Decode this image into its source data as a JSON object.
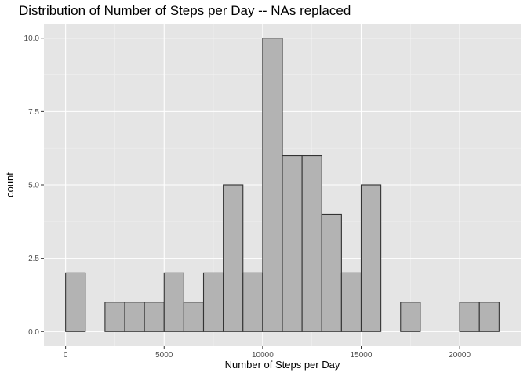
{
  "chart_data": {
    "type": "bar",
    "title": "Distribution of Number of Steps per Day -- NAs replaced",
    "xlabel": "Number of Steps per Day",
    "ylabel": "count",
    "bin_width": 1000,
    "bins": [
      {
        "x0": 0,
        "x1": 1000,
        "count": 2
      },
      {
        "x0": 1000,
        "x1": 2000,
        "count": 0
      },
      {
        "x0": 2000,
        "x1": 3000,
        "count": 1
      },
      {
        "x0": 3000,
        "x1": 4000,
        "count": 1
      },
      {
        "x0": 4000,
        "x1": 5000,
        "count": 1
      },
      {
        "x0": 5000,
        "x1": 6000,
        "count": 2
      },
      {
        "x0": 6000,
        "x1": 7000,
        "count": 1
      },
      {
        "x0": 7000,
        "x1": 8000,
        "count": 2
      },
      {
        "x0": 8000,
        "x1": 9000,
        "count": 5
      },
      {
        "x0": 9000,
        "x1": 10000,
        "count": 2
      },
      {
        "x0": 10000,
        "x1": 11000,
        "count": 10
      },
      {
        "x0": 11000,
        "x1": 12000,
        "count": 6
      },
      {
        "x0": 12000,
        "x1": 13000,
        "count": 6
      },
      {
        "x0": 13000,
        "x1": 14000,
        "count": 4
      },
      {
        "x0": 14000,
        "x1": 15000,
        "count": 2
      },
      {
        "x0": 15000,
        "x1": 16000,
        "count": 5
      },
      {
        "x0": 16000,
        "x1": 17000,
        "count": 0
      },
      {
        "x0": 17000,
        "x1": 18000,
        "count": 1
      },
      {
        "x0": 18000,
        "x1": 19000,
        "count": 0
      },
      {
        "x0": 19000,
        "x1": 20000,
        "count": 0
      },
      {
        "x0": 20000,
        "x1": 21000,
        "count": 1
      },
      {
        "x0": 21000,
        "x1": 22000,
        "count": 1
      }
    ],
    "xlim": [
      -1100,
      23100
    ],
    "ylim": [
      -0.5,
      10.5
    ],
    "x_ticks": [
      0,
      5000,
      10000,
      15000,
      20000
    ],
    "x_tick_labels": [
      "0",
      "5000",
      "10000",
      "15000",
      "20000"
    ],
    "y_ticks": [
      0,
      2.5,
      5,
      7.5,
      10
    ],
    "y_tick_labels": [
      "0.0",
      "2.5",
      "5.0",
      "7.5",
      "10.0"
    ],
    "grid": true,
    "colors": {
      "panel_background": "#e5e5e5",
      "grid_major": "#ffffff",
      "grid_minor": "#f0f0f0",
      "bar_fill": "#b3b3b3",
      "bar_outline": "#333333"
    }
  }
}
